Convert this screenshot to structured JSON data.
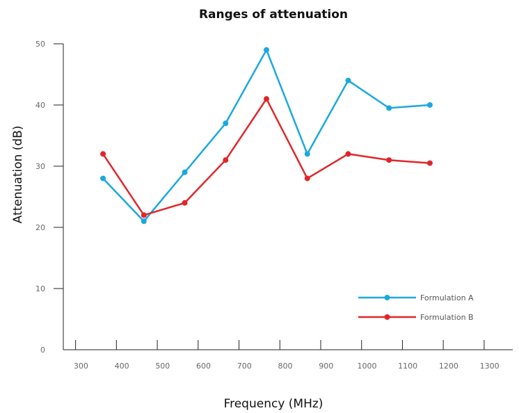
{
  "chart_data": {
    "type": "line",
    "title": "Ranges of attenuation",
    "xlabel": "Frequency (MHz)",
    "ylabel": "Attenuation (dB)",
    "x_ticks": [
      "300",
      "400",
      "500",
      "600",
      "700",
      "800",
      "900",
      "1000",
      "1100",
      "1200",
      "1300"
    ],
    "y_ticks": [
      "0",
      "10",
      "20",
      "30",
      "40",
      "50"
    ],
    "xlim": [
      250,
      1350
    ],
    "ylim": [
      0,
      50
    ],
    "grid": false,
    "legend_position": "lower-right",
    "series": [
      {
        "name": "Formulation A",
        "color": "#1ba8de",
        "x": [
          400,
          500,
          600,
          700,
          800,
          900,
          1000,
          1100,
          1200
        ],
        "y": [
          28,
          21,
          29,
          37,
          49,
          32,
          44,
          39.5,
          40
        ]
      },
      {
        "name": "Formulation B",
        "color": "#e0262b",
        "x": [
          400,
          500,
          600,
          700,
          800,
          900,
          1000,
          1100,
          1200
        ],
        "y": [
          32,
          22,
          24,
          31,
          41,
          28,
          32,
          31,
          30.5
        ]
      }
    ]
  }
}
